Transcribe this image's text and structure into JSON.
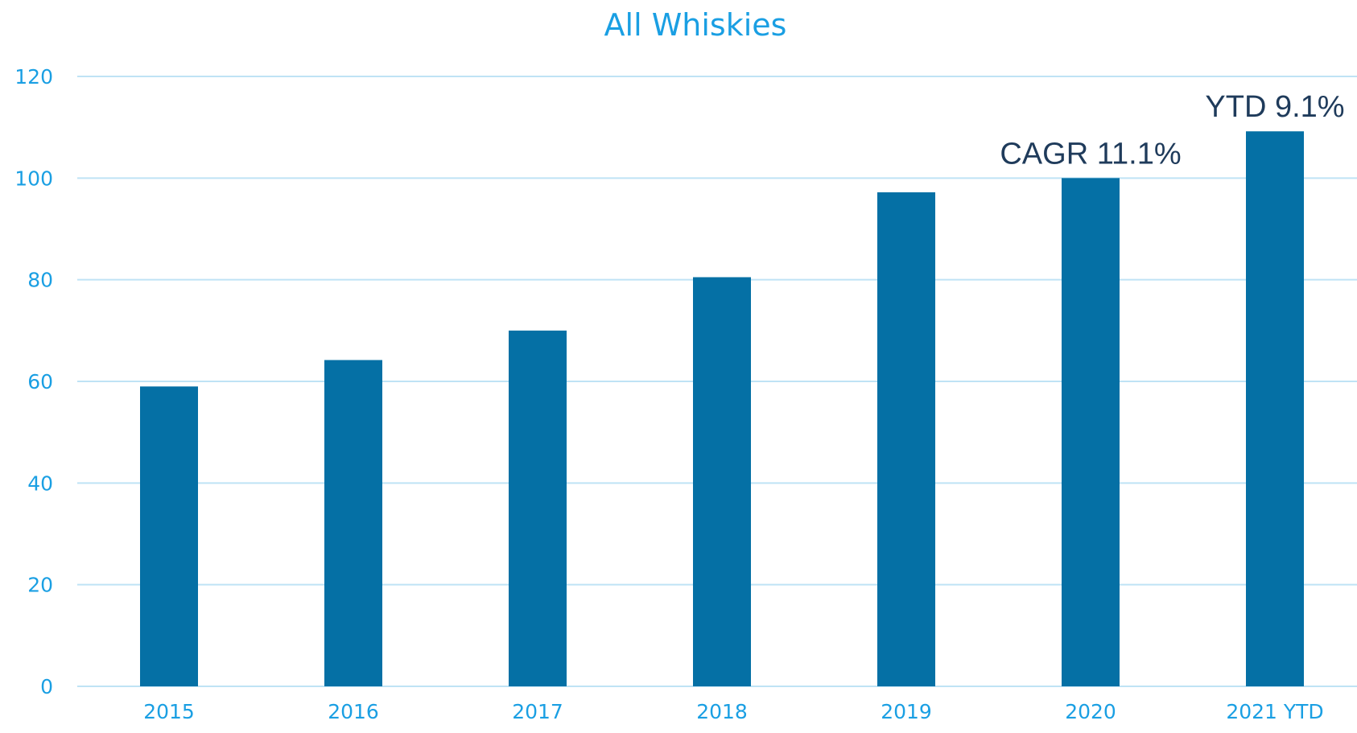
{
  "chart_data": {
    "type": "bar",
    "title": "All Whiskies",
    "xlabel": "",
    "ylabel": "",
    "categories": [
      "2015",
      "2016",
      "2017",
      "2018",
      "2019",
      "2020",
      "2021 YTD"
    ],
    "values": [
      59,
      64.2,
      70,
      80.5,
      97.2,
      100,
      109.2
    ],
    "ylim": [
      0,
      120
    ],
    "yticks": [
      "0",
      "20",
      "40",
      "60",
      "80",
      "100",
      "120"
    ],
    "grid": true,
    "legend": "none",
    "annotations": [
      {
        "text": "CAGR 11.1%",
        "category": "2020"
      },
      {
        "text": "YTD 9.1%",
        "category": "2021 YTD"
      }
    ],
    "colors": {
      "bar": "#0570A5",
      "title": "#1A9FE3",
      "tick": "#1A9FE3",
      "grid": "#BFE3F5",
      "annotation": "#1F3B5B"
    }
  }
}
